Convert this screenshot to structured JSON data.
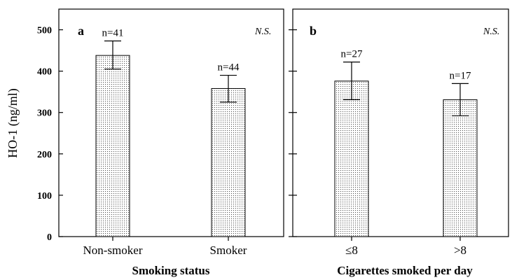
{
  "chart_data": [
    {
      "type": "bar",
      "panel": "a",
      "significance": "N.S.",
      "ylabel": "HO-1 (ng/ml)",
      "xlabel": "Smoking status",
      "ylim": [
        0,
        550
      ],
      "yticks": [
        "0",
        "100",
        "200",
        "300",
        "400",
        "500"
      ],
      "categories": [
        "Non-smoker",
        "Smoker"
      ],
      "values": [
        438,
        358
      ],
      "error_low": [
        405,
        325
      ],
      "error_high": [
        473,
        390
      ],
      "n_labels": [
        "n=41",
        "n=44"
      ]
    },
    {
      "type": "bar",
      "panel": "b",
      "significance": "N.S.",
      "xlabel": "Cigarettes smoked per day",
      "ylim": [
        0,
        550
      ],
      "yticks": [
        "0",
        "100",
        "200",
        "300",
        "400",
        "500"
      ],
      "categories": [
        "≤8",
        ">8"
      ],
      "values": [
        376,
        331
      ],
      "error_low": [
        331,
        292
      ],
      "error_high": [
        422,
        370
      ],
      "n_labels": [
        "n=27",
        "n=17"
      ]
    }
  ]
}
